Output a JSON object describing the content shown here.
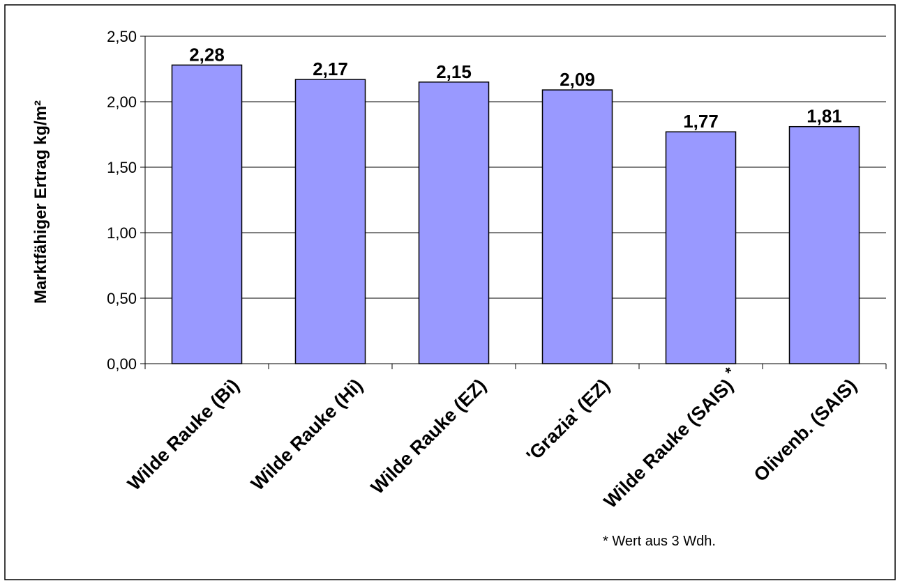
{
  "chart_data": {
    "type": "bar",
    "categories": [
      "Wilde Rauke (Bi)",
      "Wilde Rauke (Hi)",
      "Wilde Rauke (EZ)",
      "'Grazia' (EZ)",
      "Wilde Rauke (SAIS)",
      "Olivenb. (SAIS)"
    ],
    "category_markers": [
      "",
      "",
      "",
      "",
      "*",
      ""
    ],
    "values": [
      2.28,
      2.17,
      2.15,
      2.09,
      1.77,
      1.81
    ],
    "data_labels": [
      "2,28",
      "2,17",
      "2,15",
      "2,09",
      "1,77",
      "1,81"
    ],
    "title": "",
    "xlabel": "",
    "ylabel": "Marktfähiger Ertrag kg/m²",
    "ylim": [
      0,
      2.5
    ],
    "yticks": [
      0,
      0.5,
      1,
      1.5,
      2,
      2.5
    ],
    "ytick_labels": [
      "0,00",
      "0,50",
      "1,00",
      "1,50",
      "2,00",
      "2,50"
    ],
    "grid": true,
    "legend": "none",
    "colors": {
      "bar_fill": "#9999ff",
      "bar_stroke": "#000000",
      "grid": "#000000",
      "frame": "#000000",
      "text": "#000000"
    }
  },
  "footnote": "* Wert aus 3 Wdh."
}
